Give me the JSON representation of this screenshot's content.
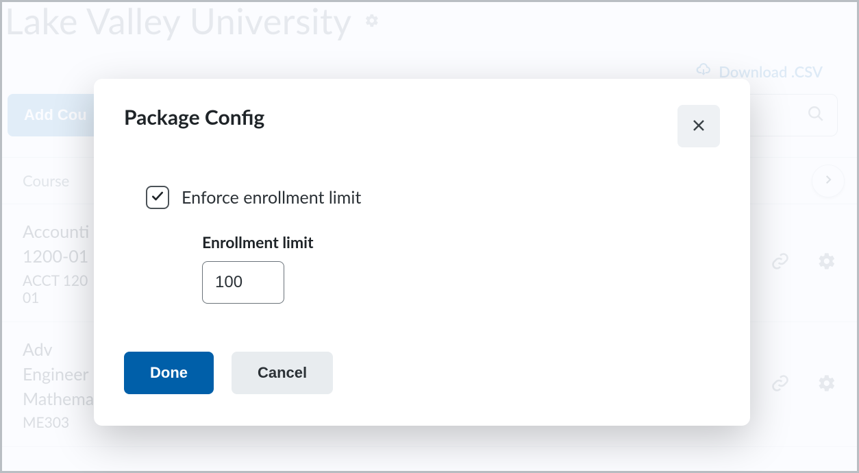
{
  "page": {
    "title": "Lake Valley University",
    "download_label": "Download .CSV",
    "add_course_label": "Add Cou",
    "table": {
      "header": "Course",
      "rows": [
        {
          "title_lines": [
            "Accounti",
            "1200-01"
          ],
          "sub_lines": [
            "ACCT 120",
            "01"
          ]
        },
        {
          "title_lines": [
            "Adv",
            "Engineer",
            "Mathema"
          ],
          "sub_lines": [
            "ME303"
          ]
        }
      ]
    }
  },
  "modal": {
    "title": "Package Config",
    "checkbox_label": "Enforce enrollment limit",
    "checkbox_checked": true,
    "field_label": "Enrollment limit",
    "field_value": "100",
    "done_label": "Done",
    "cancel_label": "Cancel"
  },
  "colors": {
    "primary_button": "#005fa9",
    "secondary_button": "#e8ecef",
    "close_button_bg": "#eef1f4",
    "dim_text": "#b7bfc6",
    "link": "#9cc2e0",
    "add_button": "#a9cbe8"
  }
}
